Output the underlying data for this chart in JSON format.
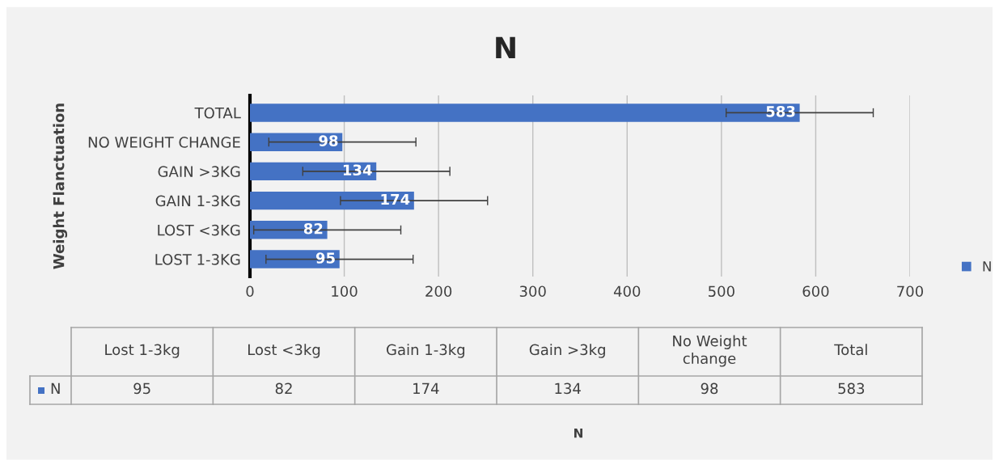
{
  "chart_data": {
    "type": "bar",
    "orientation": "horizontal",
    "title": "N",
    "ylabel": "Weight Flanctuation",
    "categories": [
      "TOTAL",
      "NO WEIGHT CHANGE",
      "GAIN >3KG",
      "GAIN 1-3KG",
      "LOST <3KG",
      "LOST 1-3KG"
    ],
    "series": [
      {
        "name": "N",
        "color": "#4472c4",
        "values": [
          583,
          98,
          134,
          174,
          82,
          95
        ],
        "errors": [
          78,
          78,
          78,
          78,
          78,
          78
        ]
      }
    ],
    "xlim": [
      0,
      700
    ],
    "xticks": [
      0,
      100,
      200,
      300,
      400,
      500,
      600,
      700
    ],
    "grid": "x",
    "legend": "right",
    "data_labels": true,
    "annotations": [
      "Lost 1-3kg",
      "Lost <3kg",
      "Gain 1-3kg",
      "Gain >3kg",
      "No Weight\nchange",
      "Total",
      "95",
      "82",
      "174",
      "134",
      "98",
      "583",
      "N"
    ]
  }
}
